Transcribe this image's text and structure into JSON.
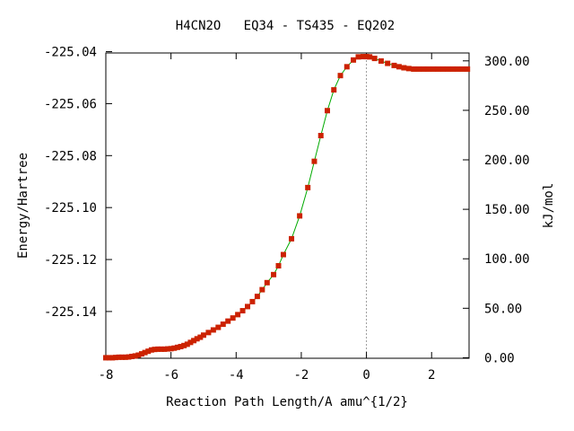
{
  "chart_data": {
    "type": "line",
    "title": "H4CN2O   EQ34 - TS435 - EQ202",
    "xlabel": "Reaction Path Length/A amu^{1/2}",
    "ylabel": "Energy/Hartree",
    "y2label": "kJ/mol",
    "xlim": [
      -8.0,
      3.15
    ],
    "ylim": [
      -225.158,
      -225.0405
    ],
    "x_ticks": [
      -8,
      -6,
      -4,
      -2,
      0,
      2
    ],
    "x_tick_labels": [
      "-8",
      "-6",
      "-4",
      "-2",
      "0",
      "2"
    ],
    "y_ticks": [
      -225.04,
      -225.06,
      -225.08,
      -225.1,
      -225.12,
      -225.14
    ],
    "y_tick_labels": [
      "-225.04",
      "-225.06",
      "-225.08",
      "-225.10",
      "-225.12",
      "-225.14"
    ],
    "y2_ticks": [
      0,
      50,
      100,
      150,
      200,
      250,
      300
    ],
    "y2_tick_labels": [
      "0.00",
      "50.00",
      "100.00",
      "150.00",
      "200.00",
      "250.00",
      "300.00"
    ],
    "y2_zero_energy": -225.1578,
    "kj_per_hartree": 2625.5,
    "ts_marker_x": 0,
    "grid": false,
    "colors": {
      "line": "#00aa00",
      "marker": "#cc2200",
      "ts_line": "#999999"
    },
    "series": [
      {
        "x": [
          -8.0,
          -7.9,
          -7.8,
          -7.7,
          -7.6,
          -7.5,
          -7.4,
          -7.3,
          -7.2,
          -7.1,
          -7.0,
          -6.9,
          -6.8,
          -6.7,
          -6.6,
          -6.5,
          -6.4,
          -6.3,
          -6.2,
          -6.1,
          -6.0,
          -5.9,
          -5.8,
          -5.7,
          -5.6,
          -5.5,
          -5.4,
          -5.3,
          -5.2,
          -5.1,
          -5.0,
          -4.85,
          -4.7,
          -4.55,
          -4.4,
          -4.25,
          -4.1,
          -3.95,
          -3.8,
          -3.65,
          -3.5,
          -3.35,
          -3.2,
          -3.05,
          -2.85,
          -2.7,
          -2.55,
          -2.3,
          -2.05,
          -1.8,
          -1.6,
          -1.4,
          -1.2,
          -1.0,
          -0.8,
          -0.6,
          -0.4,
          -0.25,
          -0.1,
          0.0,
          0.1,
          0.25,
          0.45,
          0.65,
          0.85,
          1.0,
          1.15,
          1.3,
          1.45,
          1.6,
          1.75,
          1.9,
          2.05,
          2.2,
          2.35,
          2.5,
          2.65,
          2.8,
          2.95,
          3.1
        ],
        "y": [
          -225.1578,
          -225.1578,
          -225.1578,
          -225.1577,
          -225.1576,
          -225.1576,
          -225.1576,
          -225.1575,
          -225.1573,
          -225.1571,
          -225.1568,
          -225.1563,
          -225.1558,
          -225.1553,
          -225.1548,
          -225.1546,
          -225.1545,
          -225.1545,
          -225.1545,
          -225.1544,
          -225.1543,
          -225.1541,
          -225.1538,
          -225.1535,
          -225.1531,
          -225.1526,
          -225.1519,
          -225.1512,
          -225.1505,
          -225.1499,
          -225.1491,
          -225.1481,
          -225.1471,
          -225.1461,
          -225.1449,
          -225.1437,
          -225.1425,
          -225.1412,
          -225.1397,
          -225.1381,
          -225.1362,
          -225.1342,
          -225.1316,
          -225.1289,
          -225.1258,
          -225.1224,
          -225.1181,
          -225.112,
          -225.1032,
          -225.0923,
          -225.0822,
          -225.0723,
          -225.0627,
          -225.0547,
          -225.0492,
          -225.0458,
          -225.0432,
          -225.042,
          -225.0419,
          -225.0419,
          -225.042,
          -225.0426,
          -225.0436,
          -225.0445,
          -225.0453,
          -225.0458,
          -225.0462,
          -225.0465,
          -225.0467,
          -225.0467,
          -225.0467,
          -225.0467,
          -225.0467,
          -225.0467,
          -225.0467,
          -225.0467,
          -225.0467,
          -225.0467,
          -225.0467,
          -225.0467
        ]
      }
    ]
  }
}
